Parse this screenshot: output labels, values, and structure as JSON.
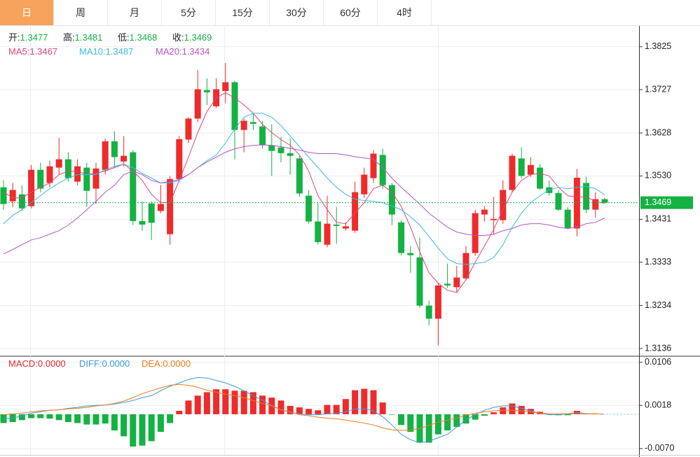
{
  "tabs": [
    {
      "label": "日",
      "active": true
    },
    {
      "label": "周",
      "active": false
    },
    {
      "label": "月",
      "active": false
    },
    {
      "label": "5分",
      "active": false
    },
    {
      "label": "15分",
      "active": false
    },
    {
      "label": "30分",
      "active": false
    },
    {
      "label": "60分",
      "active": false
    },
    {
      "label": "4时",
      "active": false
    }
  ],
  "chart_data": [
    {
      "type": "candlestick",
      "up_color": "#ee2b2b",
      "down_color": "#14b143",
      "grid": true,
      "ylim": [
        1.312,
        1.3871
      ],
      "yticks": [
        1.3825,
        1.3727,
        1.3628,
        {
          "value": 1.353,
          "label": "1.3530"
        },
        1.3431,
        1.3333,
        1.3234,
        1.3136
      ],
      "summary": [
        {
          "label": "开:",
          "value": 1.3477
        },
        {
          "label": "高:",
          "value": 1.3481
        },
        {
          "label": "低:",
          "value": 1.3468
        },
        {
          "label": "收:",
          "value": 1.3469
        }
      ],
      "last_price": 1.3469,
      "last_price_color": "#14b143",
      "open": [
        1.3504,
        1.3472,
        1.3488,
        1.3461,
        1.3544,
        1.3514,
        1.3549,
        1.3568,
        1.3517,
        1.3549,
        1.3501,
        1.3544,
        1.3609,
        1.3563,
        1.3584,
        1.3427,
        1.3467,
        1.345,
        1.3397,
        1.3523,
        1.3613,
        1.3661,
        1.3726,
        1.3689,
        1.3724,
        1.3744,
        1.3635,
        1.3653,
        1.3643,
        1.36,
        1.3595,
        1.3582,
        1.357,
        1.3485,
        1.3426,
        1.3373,
        1.3419,
        1.341,
        1.3405,
        1.3488,
        1.3525,
        1.3578,
        1.3509,
        1.3424,
        1.3354,
        1.3344,
        1.3234,
        1.3204,
        1.3284,
        1.3276,
        1.3296,
        1.3354,
        1.3442,
        1.3429,
        1.3429,
        1.3498,
        1.357,
        1.3533,
        1.3549,
        1.3504,
        1.3491,
        1.3453,
        1.341,
        1.3514,
        1.3453,
        1.3477
      ],
      "high": [
        1.352,
        1.3514,
        1.3509,
        1.3555,
        1.356,
        1.3565,
        1.3617,
        1.3584,
        1.3568,
        1.356,
        1.356,
        1.3616,
        1.3632,
        1.3621,
        1.3589,
        1.3472,
        1.3472,
        1.3509,
        1.353,
        1.3621,
        1.3664,
        1.3772,
        1.3753,
        1.3753,
        1.3788,
        1.3748,
        1.3661,
        1.3672,
        1.3656,
        1.3648,
        1.3619,
        1.3616,
        1.3576,
        1.3498,
        1.3469,
        1.3485,
        1.3459,
        1.3424,
        1.3517,
        1.3549,
        1.3589,
        1.3592,
        1.3514,
        1.3429,
        1.337,
        1.3389,
        1.3245,
        1.3285,
        1.333,
        1.3325,
        1.337,
        1.3453,
        1.3461,
        1.3482,
        1.352,
        1.3581,
        1.3595,
        1.3573,
        1.3557,
        1.352,
        1.3498,
        1.3459,
        1.3546,
        1.3528,
        1.3493,
        1.3481
      ],
      "low": [
        1.3453,
        1.3459,
        1.345,
        1.3456,
        1.3493,
        1.3504,
        1.3533,
        1.3517,
        1.3509,
        1.3459,
        1.3466,
        1.3533,
        1.3549,
        1.3552,
        1.3418,
        1.3405,
        1.3384,
        1.3445,
        1.3373,
        1.3517,
        1.3605,
        1.3653,
        1.3692,
        1.3685,
        1.3696,
        1.3568,
        1.3584,
        1.3635,
        1.3592,
        1.353,
        1.3561,
        1.3533,
        1.3482,
        1.3421,
        1.3373,
        1.3367,
        1.3375,
        1.3405,
        1.34,
        1.348,
        1.3514,
        1.3501,
        1.3418,
        1.3348,
        1.3309,
        1.3229,
        1.3189,
        1.3143,
        1.3274,
        1.3265,
        1.3293,
        1.3348,
        1.3426,
        1.3397,
        1.3421,
        1.3493,
        1.3525,
        1.3528,
        1.3498,
        1.3485,
        1.345,
        1.3408,
        1.3392,
        1.3445,
        1.3435,
        1.3468
      ],
      "close": [
        1.3466,
        1.3498,
        1.3456,
        1.3544,
        1.3501,
        1.3552,
        1.3568,
        1.3525,
        1.3552,
        1.3496,
        1.3547,
        1.3609,
        1.3573,
        1.3576,
        1.3427,
        1.3419,
        1.3423,
        1.3466,
        1.3523,
        1.3614,
        1.3661,
        1.3728,
        1.3721,
        1.3728,
        1.3744,
        1.3635,
        1.3656,
        1.3649,
        1.36,
        1.3587,
        1.3582,
        1.3576,
        1.349,
        1.3426,
        1.3379,
        1.3421,
        1.3416,
        1.3415,
        1.3493,
        1.3533,
        1.3581,
        1.3509,
        1.3442,
        1.3354,
        1.3349,
        1.3234,
        1.3204,
        1.328,
        1.328,
        1.3298,
        1.3354,
        1.3445,
        1.3453,
        1.3432,
        1.3498,
        1.3576,
        1.353,
        1.3555,
        1.3501,
        1.3491,
        1.3453,
        1.3411,
        1.3526,
        1.3453,
        1.3477,
        1.3469
      ],
      "series": [
        {
          "name": "MA5:",
          "color": "#e0457b",
          "current": 1.3467,
          "values": [
            1.3493,
            1.348,
            1.348,
            1.3493,
            1.3504,
            1.3514,
            1.3533,
            1.3541,
            1.3541,
            1.3533,
            1.3536,
            1.3541,
            1.3549,
            1.3557,
            1.3541,
            1.352,
            1.3488,
            1.3469,
            1.3469,
            1.352,
            1.3573,
            1.3629,
            1.3677,
            1.3708,
            1.372,
            1.3708,
            1.3692,
            1.3673,
            1.3648,
            1.3629,
            1.3613,
            1.36,
            1.3578,
            1.3541,
            1.3485,
            1.3453,
            1.3424,
            1.3421,
            1.3445,
            1.3469,
            1.3501,
            1.3509,
            1.3493,
            1.3461,
            1.3413,
            1.3357,
            1.3309,
            1.3285,
            1.3269,
            1.3264,
            1.3293,
            1.3333,
            1.337,
            1.3408,
            1.3453,
            1.3493,
            1.352,
            1.3533,
            1.3536,
            1.353,
            1.3504,
            1.3485,
            1.3482,
            1.3482,
            1.3472,
            1.3467
          ]
        },
        {
          "name": "MA10:",
          "color": "#3bbbe0",
          "current": 1.3487,
          "values": [
            1.3421,
            1.344,
            1.3453,
            1.3469,
            1.3485,
            1.3501,
            1.3514,
            1.3525,
            1.3533,
            1.3533,
            1.3533,
            1.3544,
            1.3552,
            1.3557,
            1.3549,
            1.3536,
            1.3525,
            1.3514,
            1.3514,
            1.352,
            1.3533,
            1.3549,
            1.3565,
            1.3578,
            1.3605,
            1.3637,
            1.3664,
            1.3673,
            1.3673,
            1.3664,
            1.3645,
            1.3621,
            1.3597,
            1.3573,
            1.3549,
            1.3525,
            1.3504,
            1.3488,
            1.3477,
            1.3474,
            1.3472,
            1.3469,
            1.3461,
            1.3453,
            1.3437,
            1.3418,
            1.3392,
            1.3365,
            1.3341,
            1.333,
            1.3328,
            1.333,
            1.3333,
            1.3344,
            1.3373,
            1.3413,
            1.3445,
            1.3469,
            1.3485,
            1.3498,
            1.3504,
            1.3501,
            1.3504,
            1.3506,
            1.3501,
            1.3487
          ]
        },
        {
          "name": "MA20:",
          "color": "#b455c8",
          "current": 1.3434,
          "values": [
            1.3352,
            1.3362,
            1.3373,
            1.3384,
            1.3389,
            1.3397,
            1.3405,
            1.3418,
            1.3434,
            1.3453,
            1.3472,
            1.3493,
            1.3509,
            1.3533,
            1.3541,
            1.3533,
            1.352,
            1.3514,
            1.3517,
            1.3522,
            1.3533,
            1.3549,
            1.3562,
            1.3573,
            1.3584,
            1.3592,
            1.3597,
            1.36,
            1.3601,
            1.36,
            1.3597,
            1.3593,
            1.3589,
            1.3584,
            1.3581,
            1.3581,
            1.3581,
            1.3578,
            1.3574,
            1.3571,
            1.3568,
            1.3549,
            1.3525,
            1.3504,
            1.3485,
            1.3466,
            1.3445,
            1.3429,
            1.3413,
            1.3402,
            1.3397,
            1.3394,
            1.3394,
            1.3397,
            1.3405,
            1.341,
            1.3418,
            1.3421,
            1.3421,
            1.3418,
            1.3413,
            1.341,
            1.3413,
            1.3421,
            1.3424,
            1.3434
          ]
        }
      ]
    },
    {
      "type": "macd",
      "up_color": "#ee2b2b",
      "down_color": "#14b143",
      "grid": true,
      "ylim": [
        -0.0083,
        0.0117
      ],
      "yticks": [
        0.0106,
        0.0018,
        {
          "value": -0.007,
          "label": "-0.0070"
        }
      ],
      "series": [
        {
          "name": "MACD:",
          "kind": "bar",
          "color": "#e8262a",
          "current": {
            "value": 0,
            "label": "0.0000"
          },
          "values": [
            -0.0018,
            -0.0016,
            -0.0012,
            -0.0008,
            -0.0008,
            -0.0009,
            -0.0012,
            -0.0016,
            -0.0018,
            -0.0021,
            -0.0021,
            -0.0019,
            -0.0033,
            -0.0045,
            -0.0066,
            -0.0064,
            -0.0055,
            -0.0036,
            -0.0018,
            0.0007,
            0.0028,
            0.0038,
            0.0045,
            0.0051,
            0.0051,
            0.0048,
            0.0048,
            0.0045,
            0.0038,
            0.0034,
            0.0028,
            0.0017,
            0.0014,
            0.0011,
            0.0008,
            0.0019,
            0.0019,
            0.0031,
            0.0049,
            0.0052,
            0.0049,
            0.0024,
            -0.0001,
            -0.0022,
            -0.0036,
            -0.0058,
            -0.0058,
            -0.0041,
            -0.0033,
            -0.0026,
            -0.0019,
            -0.0011,
            -0.0003,
            0.0004,
            0.0014,
            0.0022,
            0.0017,
            0.0011,
            0.0005,
            -0.0001,
            -0.0002,
            -0.0002,
            0.0007,
            0.0001,
            0.0001,
            0
          ]
        },
        {
          "name": "DIFF:",
          "kind": "line",
          "color": "#3a9be0",
          "current": {
            "value": 0,
            "label": "0.0000"
          },
          "values": [
            -0.0009,
            -0.0008,
            -0.0003,
            0.0002,
            0.0005,
            0.0008,
            0.0009,
            0.0012,
            0.0014,
            0.0017,
            0.0018,
            0.0019,
            0.0021,
            0.0024,
            0.0028,
            0.0034,
            0.0038,
            0.0048,
            0.0057,
            0.0064,
            0.0071,
            0.0075,
            0.0074,
            0.0069,
            0.0064,
            0.0057,
            0.0048,
            0.0038,
            0.0028,
            0.0018,
            0.0009,
            0.0004,
            0.0001,
            -0.0001,
            -0.0001,
            0.0001,
            0.0002,
            0.0005,
            0.0011,
            0.0011,
            0.0007,
            -0.0005,
            -0.0022,
            -0.0041,
            -0.0052,
            -0.0058,
            -0.0055,
            -0.0048,
            -0.0041,
            -0.0026,
            -0.0012,
            -0.0001,
            0.0008,
            0.0014,
            0.0017,
            0.0017,
            0.0012,
            0.0007,
            0.0002,
            -0.0001,
            -0.0001,
            0.0001,
            0.0004,
            0.0001,
            0.0001,
            0
          ]
        },
        {
          "name": "DEA:",
          "kind": "line",
          "color": "#f07b1a",
          "current": {
            "value": 0,
            "label": "0.0000"
          },
          "values": [
            -0.0001,
            0.0001,
            0.0002,
            0.0005,
            0.0007,
            0.0008,
            0.0009,
            0.0011,
            0.0012,
            0.0014,
            0.0017,
            0.0019,
            0.0022,
            0.0027,
            0.0034,
            0.0042,
            0.0048,
            0.0054,
            0.0059,
            0.0061,
            0.0059,
            0.0055,
            0.0049,
            0.0045,
            0.0041,
            0.0038,
            0.0034,
            0.0028,
            0.0022,
            0.0017,
            0.0009,
            0.0005,
            -0.0001,
            -0.0003,
            -0.0006,
            -0.0008,
            -0.0009,
            -0.0012,
            -0.0015,
            -0.0018,
            -0.0022,
            -0.0028,
            -0.0032,
            -0.0033,
            -0.0032,
            -0.0029,
            -0.0023,
            -0.0016,
            -0.0012,
            -0.0008,
            -0.0002,
            0.0002,
            0.0005,
            0.0007,
            0.0008,
            0.0008,
            0.0007,
            0.0005,
            0.0002,
            0.0001,
            0.0001,
            0.0001,
            0.0001,
            0.0001,
            0.0001,
            0
          ]
        }
      ]
    }
  ]
}
